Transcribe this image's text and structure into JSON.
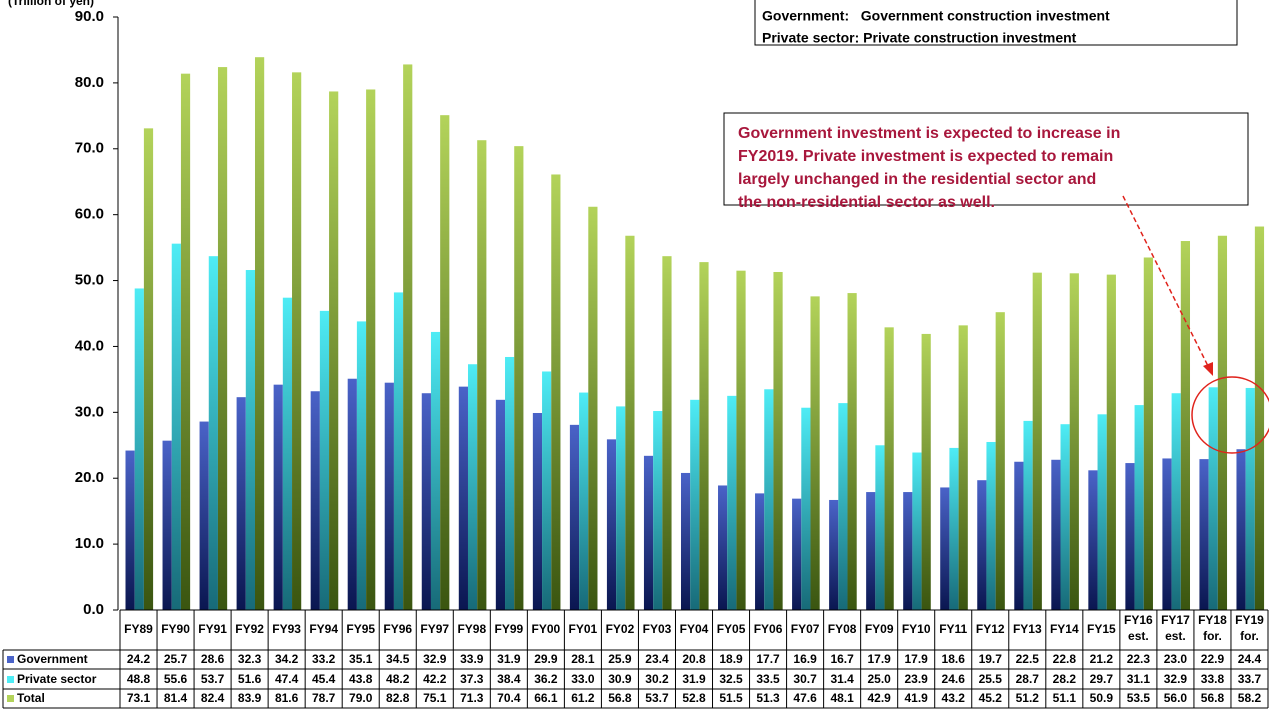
{
  "chart_data": {
    "type": "bar",
    "y_axis_label": "(Trillion of yen)",
    "legend_note": [
      "Government:   Government construction investment",
      "Private sector: Private construction investment"
    ],
    "annotation": [
      "Government investment is expected to increase in",
      "FY2019. Private investment is expected to remain",
      "largely unchanged in the residential sector and",
      "the non-residential sector as well."
    ],
    "categories": [
      "FY89",
      "FY90",
      "FY91",
      "FY92",
      "FY93",
      "FY94",
      "FY95",
      "FY96",
      "FY97",
      "FY98",
      "FY99",
      "FY00",
      "FY01",
      "FY02",
      "FY03",
      "FY04",
      "FY05",
      "FY06",
      "FY07",
      "FY08",
      "FY09",
      "FY10",
      "FY11",
      "FY12",
      "FY13",
      "FY14",
      "FY15",
      "FY16 est.",
      "FY17 est.",
      "FY18 for.",
      "FY19 for."
    ],
    "series": [
      {
        "name": "Government",
        "color": "#4a63c8",
        "values": [
          24.2,
          25.7,
          28.6,
          32.3,
          34.2,
          33.2,
          35.1,
          34.5,
          32.9,
          33.9,
          31.9,
          29.9,
          28.1,
          25.9,
          23.4,
          20.8,
          18.9,
          17.7,
          16.9,
          16.7,
          17.9,
          17.9,
          18.6,
          19.7,
          22.5,
          22.8,
          21.2,
          22.3,
          23.0,
          22.9,
          24.4
        ],
        "value_labels": [
          "24.2",
          "25.7",
          "28.6",
          "32.3",
          "34.2",
          "33.2",
          "35.1",
          "34.5",
          "32.9",
          "33.9",
          "31.9",
          "29.9",
          "28.1",
          "25.9",
          "23.4",
          "20.8",
          "18.9",
          "17.7",
          "16.9",
          "16.7",
          "17.9",
          "17.9",
          "18.6",
          "19.7",
          "22.5",
          "22.8",
          "21.2",
          "22.3",
          "23.0",
          "22.9",
          "24.4"
        ]
      },
      {
        "name": "Private sector",
        "color": "#4eecf5",
        "values": [
          48.8,
          55.6,
          53.7,
          51.6,
          47.4,
          45.4,
          43.8,
          48.2,
          42.2,
          37.3,
          38.4,
          36.2,
          33.0,
          30.9,
          30.2,
          31.9,
          32.5,
          33.5,
          30.7,
          31.4,
          25.0,
          23.9,
          24.6,
          25.5,
          28.7,
          28.2,
          29.7,
          31.1,
          32.9,
          33.8,
          33.7
        ],
        "value_labels": [
          "48.8",
          "55.6",
          "53.7",
          "51.6",
          "47.4",
          "45.4",
          "43.8",
          "48.2",
          "42.2",
          "37.3",
          "38.4",
          "36.2",
          "33.0",
          "30.9",
          "30.2",
          "31.9",
          "32.5",
          "33.5",
          "30.7",
          "31.4",
          "25.0",
          "23.9",
          "24.6",
          "25.5",
          "28.7",
          "28.2",
          "29.7",
          "31.1",
          "32.9",
          "33.8",
          "33.7"
        ]
      },
      {
        "name": "Total",
        "color": "#b3d35a",
        "values": [
          73.1,
          81.4,
          82.4,
          83.9,
          81.6,
          78.7,
          79.0,
          82.8,
          75.1,
          71.3,
          70.4,
          66.1,
          61.2,
          56.8,
          53.7,
          52.8,
          51.5,
          51.3,
          47.6,
          48.1,
          42.9,
          41.9,
          43.2,
          45.2,
          51.2,
          51.1,
          50.9,
          53.5,
          56.0,
          56.8,
          58.2
        ],
        "value_labels": [
          "73.1",
          "81.4",
          "82.4",
          "83.9",
          "81.6",
          "78.7",
          "79.0",
          "82.8",
          "75.1",
          "71.3",
          "70.4",
          "66.1",
          "61.2",
          "56.8",
          "53.7",
          "52.8",
          "51.5",
          "51.3",
          "47.6",
          "48.1",
          "42.9",
          "41.9",
          "43.2",
          "45.2",
          "51.2",
          "51.1",
          "50.9",
          "53.5",
          "56.0",
          "56.8",
          "58.2"
        ]
      }
    ],
    "ylim": [
      0,
      90
    ],
    "yticks": [
      {
        "value": 0,
        "label": "0.0"
      },
      {
        "value": 10,
        "label": "10.0"
      },
      {
        "value": 20,
        "label": "20.0"
      },
      {
        "value": 30,
        "label": "30.0"
      },
      {
        "value": 40,
        "label": "40.0"
      },
      {
        "value": 50,
        "label": "50.0"
      },
      {
        "value": 60,
        "label": "60.0"
      },
      {
        "value": 70,
        "label": "70.0"
      },
      {
        "value": 80,
        "label": "80.0"
      },
      {
        "value": 90,
        "label": "90.0"
      }
    ],
    "grid": false
  }
}
